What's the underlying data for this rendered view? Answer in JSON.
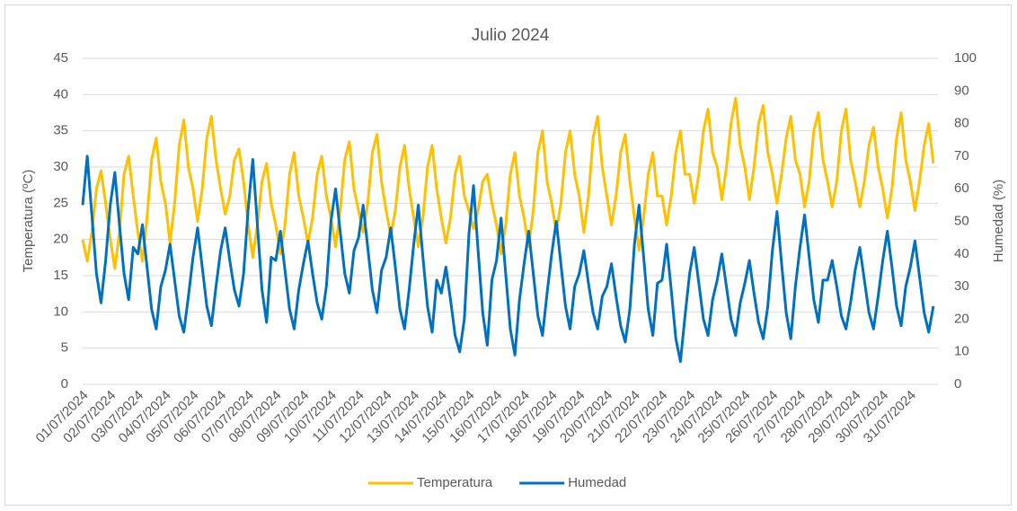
{
  "chart_data": {
    "type": "line",
    "title": "Julio 2024",
    "y_label": "Temperatura (ºC)",
    "y2_label": "Humedad (%)",
    "ylim": [
      0,
      45
    ],
    "yticks": [
      0,
      5,
      10,
      15,
      20,
      25,
      30,
      35,
      40,
      45
    ],
    "y2lim": [
      0,
      100
    ],
    "y2ticks": [
      0,
      10,
      20,
      30,
      40,
      50,
      60,
      70,
      80,
      90,
      100
    ],
    "grid": true,
    "legend": "bottom",
    "categories": [
      "01/07/2024",
      null,
      null,
      null,
      null,
      null,
      "02/07/2024",
      null,
      null,
      null,
      null,
      null,
      "03/07/2024",
      null,
      null,
      null,
      null,
      null,
      "04/07/2024",
      null,
      null,
      null,
      null,
      null,
      "05/07/2024",
      null,
      null,
      null,
      null,
      null,
      "06/07/2024",
      null,
      null,
      null,
      null,
      null,
      "07/07/2024",
      null,
      null,
      null,
      null,
      null,
      "08/07/2024",
      null,
      null,
      null,
      null,
      null,
      "09/07/2024",
      null,
      null,
      null,
      null,
      null,
      "10/07/2024",
      null,
      null,
      null,
      null,
      null,
      "11/07/2024",
      null,
      null,
      null,
      null,
      null,
      "12/07/2024",
      null,
      null,
      null,
      null,
      null,
      "13/07/2024",
      null,
      null,
      null,
      null,
      null,
      "14/07/2024",
      null,
      null,
      null,
      null,
      null,
      "15/07/2024",
      null,
      null,
      null,
      null,
      null,
      "16/07/2024",
      null,
      null,
      null,
      null,
      null,
      "17/07/2024",
      null,
      null,
      null,
      null,
      null,
      "18/07/2024",
      null,
      null,
      null,
      null,
      null,
      "19/07/2024",
      null,
      null,
      null,
      null,
      null,
      "20/07/2024",
      null,
      null,
      null,
      null,
      null,
      "21/07/2024",
      null,
      null,
      null,
      null,
      null,
      "22/07/2024",
      null,
      null,
      null,
      null,
      null,
      "23/07/2024",
      null,
      null,
      null,
      null,
      null,
      "24/07/2024",
      null,
      null,
      null,
      null,
      null,
      "25/07/2024",
      null,
      null,
      null,
      null,
      null,
      "26/07/2024",
      null,
      null,
      null,
      null,
      null,
      "27/07/2024",
      null,
      null,
      null,
      null,
      null,
      "28/07/2024",
      null,
      null,
      null,
      null,
      null,
      "29/07/2024",
      null,
      null,
      null,
      null,
      null,
      "30/07/2024",
      null,
      null,
      null,
      null,
      null,
      "31/07/2024",
      null,
      null,
      null,
      null,
      null
    ],
    "series": [
      {
        "name": "Temperatura",
        "color": "#FFC000",
        "axis": "y",
        "values": [
          20,
          17,
          21,
          27,
          29.5,
          25,
          20,
          16,
          21,
          29,
          31.5,
          26,
          21,
          17,
          23,
          31,
          34,
          28,
          25,
          19.5,
          25,
          33,
          36.5,
          30,
          27,
          22.5,
          27,
          34,
          37,
          31,
          27,
          23.5,
          26,
          31,
          32.5,
          28,
          22,
          17.5,
          22,
          28,
          30.5,
          25,
          22,
          18,
          22,
          29,
          32,
          26,
          23,
          19.5,
          23,
          29,
          31.5,
          26,
          23,
          19,
          24,
          31,
          33.5,
          27,
          24,
          21,
          25,
          32,
          34.5,
          28,
          24,
          20.5,
          24,
          30,
          33,
          27,
          23,
          19,
          23,
          30,
          33,
          27,
          23,
          19.5,
          23,
          29,
          31.5,
          26,
          24,
          21.5,
          24,
          28,
          29,
          25,
          22,
          18,
          22,
          29,
          32,
          26,
          23,
          19,
          24,
          32,
          35,
          28,
          25,
          21,
          25,
          32,
          35,
          29,
          26,
          21,
          26,
          34,
          37,
          30,
          26,
          22,
          26,
          32,
          34.5,
          28,
          23,
          18.5,
          23,
          29,
          32,
          26,
          26,
          22,
          26,
          32,
          35,
          29,
          29,
          25,
          29,
          35,
          38,
          32,
          30,
          25.5,
          30,
          36,
          39.5,
          33,
          30,
          25.5,
          30,
          36,
          38.5,
          32,
          29,
          25,
          29,
          34,
          37,
          31,
          29,
          24.5,
          28,
          35,
          37.5,
          31,
          28,
          24.5,
          28,
          35,
          38,
          31,
          28,
          24.5,
          28,
          33,
          35.5,
          30,
          27,
          23,
          27,
          34,
          37.5,
          31,
          28,
          24,
          28,
          33,
          36,
          30.5
        ]
      },
      {
        "name": "Humedad",
        "color": "#0070C0",
        "axis": "y2",
        "values": [
          55,
          70,
          52,
          34,
          25,
          38,
          55,
          65,
          49,
          34,
          26,
          42,
          40,
          49,
          36,
          23,
          17,
          30,
          35,
          43,
          32,
          21,
          16,
          27,
          39,
          48,
          36,
          24,
          18,
          30,
          41,
          48,
          38,
          29,
          24,
          34,
          54,
          69,
          49,
          29,
          19,
          39,
          38,
          47,
          35,
          23,
          17,
          29,
          37,
          44,
          34,
          25,
          20,
          30,
          50,
          60,
          47,
          34,
          28,
          41,
          45,
          55,
          42,
          29,
          22,
          35,
          39,
          48,
          36,
          23,
          17,
          29,
          43,
          55,
          39,
          24,
          16,
          32,
          28,
          36,
          26,
          15,
          10,
          20,
          46,
          61,
          41,
          22,
          12,
          32,
          38,
          51,
          34,
          17,
          9,
          26,
          37,
          47,
          34,
          21,
          15,
          28,
          40,
          50,
          37,
          24,
          17,
          30,
          34,
          41,
          31,
          22,
          17,
          27,
          30,
          37,
          27,
          18,
          13,
          23,
          43,
          55,
          39,
          23,
          15,
          31,
          32,
          43,
          29,
          14,
          7,
          21,
          34,
          42,
          31,
          20,
          15,
          26,
          32,
          40,
          30,
          20,
          15,
          25,
          31,
          38,
          28,
          19,
          14,
          24,
          41,
          53,
          37,
          22,
          14,
          30,
          42,
          52,
          39,
          26,
          19,
          32,
          32,
          38,
          30,
          21,
          17,
          25,
          35,
          42,
          32,
          22,
          17,
          27,
          38,
          47,
          36,
          24,
          18,
          30,
          36,
          44,
          33,
          22,
          16,
          24
        ]
      }
    ]
  }
}
